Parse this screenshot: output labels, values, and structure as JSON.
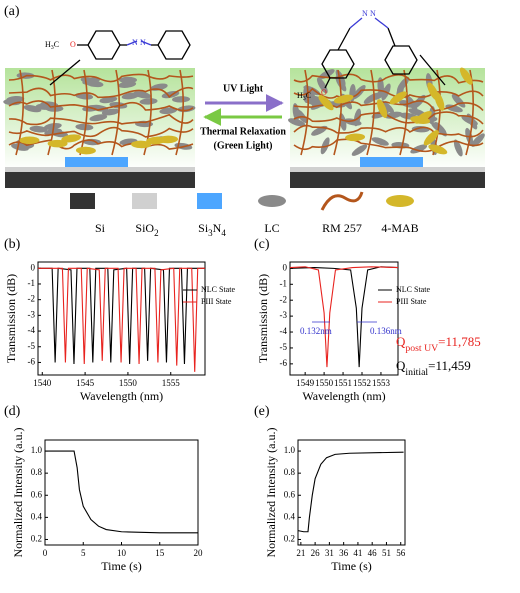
{
  "diagram": {
    "label": "(a)",
    "methoxy": [
      "H",
      "3",
      "C"
    ],
    "oxygen": "O",
    "uv": "UV Light",
    "thermal": "Thermal Relaxation",
    "green": "(Green Light)",
    "legend": [
      [
        "Si"
      ],
      [
        "SiO",
        "2"
      ],
      [
        "Si",
        "3",
        "N",
        "4"
      ],
      [
        "LC"
      ],
      [
        "RM 257"
      ],
      [
        "4-MAB"
      ]
    ]
  },
  "chart_data": [
    {
      "type": "line",
      "panel_label": "(b)",
      "xlabel": "Wavelength (nm)",
      "ylabel": "Transmission (dB)",
      "xlim": [
        1539.5,
        1559
      ],
      "ylim": [
        -6.8,
        0.4
      ],
      "xticks": [
        1540,
        1545,
        1550,
        1555
      ],
      "yticks": [
        0,
        -1,
        -2,
        -3,
        -4,
        -5,
        -6
      ],
      "legend": true,
      "series": [
        {
          "name": "NLC State",
          "color": "#000000",
          "x": [
            1539.5,
            1541.15,
            1541.5,
            1541.85,
            1543.35,
            1543.7,
            1544.05,
            1545.55,
            1545.9,
            1546.25,
            1547.65,
            1548.0,
            1548.35,
            1549.85,
            1550.2,
            1550.55,
            1551.95,
            1552.3,
            1552.65,
            1554.15,
            1554.5,
            1554.85,
            1556.25,
            1556.6,
            1556.95,
            1559.0
          ],
          "values": [
            0,
            0,
            -6.0,
            0,
            -0.1,
            -6.1,
            0,
            0,
            -6.0,
            0,
            0,
            -6.0,
            -0.1,
            0,
            -6.1,
            0,
            0,
            -5.9,
            0,
            -0.1,
            -6.0,
            0,
            0,
            -6.1,
            0,
            0
          ]
        },
        {
          "name": "PIII State",
          "color": "#e8231f",
          "x": [
            1539.5,
            1542.35,
            1542.7,
            1543.05,
            1544.55,
            1544.9,
            1545.25,
            1546.65,
            1547.0,
            1547.35,
            1548.85,
            1549.2,
            1549.55,
            1550.95,
            1551.3,
            1551.65,
            1553.15,
            1553.5,
            1553.85,
            1555.35,
            1555.7,
            1556.05,
            1557.45,
            1557.8,
            1558.15,
            1559.0
          ],
          "values": [
            0,
            0,
            -6.0,
            0,
            0,
            -6.1,
            0,
            -0.1,
            -5.9,
            0,
            0,
            -6.0,
            0,
            0,
            -6.1,
            0,
            0,
            -6.0,
            -0.1,
            0,
            -6.2,
            0,
            0,
            -6.6,
            0,
            0
          ]
        }
      ]
    },
    {
      "type": "line",
      "panel_label": "(c)",
      "xlabel": "Wavelength (nm)",
      "ylabel": "Transmission (dB)",
      "xlim": [
        1548.2,
        1553.9
      ],
      "ylim": [
        -6.7,
        0.4
      ],
      "xticks": [
        1549,
        1550,
        1551,
        1552,
        1553
      ],
      "yticks": [
        0,
        -1,
        -2,
        -3,
        -4,
        -5,
        -6
      ],
      "legend": true,
      "series": [
        {
          "name": "NLC State",
          "color": "#000000",
          "x": [
            1548.2,
            1549.5,
            1550.5,
            1551.4,
            1551.7,
            1551.85,
            1552.0,
            1552.3,
            1553,
            1553.9
          ],
          "values": [
            0,
            0.05,
            0,
            -0.1,
            -2.5,
            -6.2,
            -2.5,
            -0.1,
            0.1,
            0.05
          ]
        },
        {
          "name": "PIII State",
          "color": "#e8231f",
          "x": [
            1548.2,
            1549,
            1549.7,
            1550.0,
            1550.15,
            1550.3,
            1550.6,
            1551.5,
            1552.5,
            1553.9
          ],
          "values": [
            0.05,
            0.1,
            -0.1,
            -2.8,
            -6.2,
            -2.8,
            -0.1,
            0.05,
            0.1,
            0.05
          ]
        }
      ],
      "annotations": [
        {
          "parts": [
            "0.132nm"
          ],
          "color": "#3333cc"
        },
        {
          "parts": [
            "0.136nm"
          ],
          "color": "#3333cc"
        },
        {
          "parts": [
            "Q",
            "post UV",
            "=11,785"
          ],
          "color": "#e8231f"
        },
        {
          "parts": [
            "Q",
            "initial",
            "=11,459"
          ],
          "color": "#000000"
        }
      ]
    },
    {
      "type": "line",
      "panel_label": "(d)",
      "xlabel": "Time (s)",
      "ylabel": "Normalized Intensity (a.u.)",
      "xlim": [
        0,
        20
      ],
      "ylim": [
        0.15,
        1.1
      ],
      "xticks": [
        0,
        5,
        10,
        15,
        20
      ],
      "yticks": [
        0.2,
        0.4,
        0.6,
        0.8,
        {
          "value": 1,
          "label": "1.0"
        }
      ],
      "series": [
        {
          "color": "#000000",
          "x": [
            0,
            3.8,
            4.2,
            4.5,
            5,
            6,
            7,
            8,
            10,
            15,
            20
          ],
          "values": [
            1.0,
            1.0,
            0.85,
            0.65,
            0.5,
            0.38,
            0.32,
            0.29,
            0.27,
            0.26,
            0.26
          ]
        }
      ]
    },
    {
      "type": "line",
      "panel_label": "(e)",
      "xlabel": "Time (s)",
      "ylabel": "Normalized Intensity (a.u.)",
      "xlim": [
        20,
        57.5
      ],
      "ylim": [
        0.15,
        1.1
      ],
      "xticks": [
        21,
        26,
        31,
        36,
        41,
        46,
        51,
        56
      ],
      "yticks": [
        0.2,
        0.4,
        0.6,
        0.8,
        {
          "value": 1,
          "label": "1.0"
        }
      ],
      "series": [
        {
          "color": "#000000",
          "x": [
            20,
            22,
            23.5,
            24,
            25,
            26,
            28,
            30,
            33,
            38,
            57
          ],
          "values": [
            0.28,
            0.27,
            0.27,
            0.4,
            0.6,
            0.75,
            0.88,
            0.94,
            0.97,
            0.98,
            0.99
          ]
        }
      ]
    }
  ]
}
